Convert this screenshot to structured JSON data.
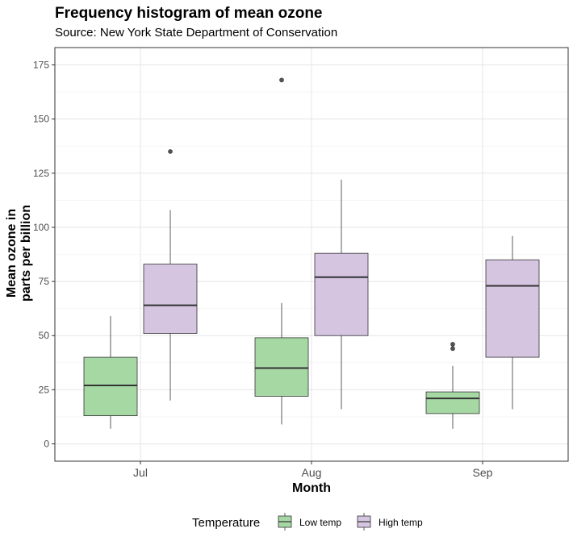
{
  "chart_data": {
    "type": "boxplot",
    "title": "Frequency histogram of mean ozone",
    "subtitle": "Source: New York State Department of Conservation",
    "xlabel": "Month",
    "ylabel_line1": "Mean ozone in",
    "ylabel_line2": "parts per billion",
    "ylim": [
      -8,
      183
    ],
    "yticks": [
      0,
      25,
      50,
      75,
      100,
      125,
      150,
      175
    ],
    "ytick_labels": [
      "0",
      "25",
      "50",
      "75",
      "100",
      "125",
      "150",
      "175"
    ],
    "grid": true,
    "legend_position": "bottom",
    "legend_title": "Temperature",
    "categories": [
      "Jul",
      "Aug",
      "Sep"
    ],
    "series": [
      {
        "name": "Low temp",
        "color": "#a6d8a4",
        "boxes": [
          {
            "whisker_low": 7,
            "q1": 13,
            "median": 27,
            "q3": 40,
            "whisker_high": 59,
            "outliers": []
          },
          {
            "whisker_low": 9,
            "q1": 22,
            "median": 35,
            "q3": 49,
            "whisker_high": 65,
            "outliers": [
              168
            ]
          },
          {
            "whisker_low": 7,
            "q1": 14,
            "median": 21,
            "q3": 24,
            "whisker_high": 36,
            "outliers": [
              44,
              46
            ]
          }
        ]
      },
      {
        "name": "High temp",
        "color": "#d5c5e1",
        "boxes": [
          {
            "whisker_low": 20,
            "q1": 51,
            "median": 64,
            "q3": 83,
            "whisker_high": 108,
            "outliers": [
              135
            ]
          },
          {
            "whisker_low": 16,
            "q1": 50,
            "median": 77,
            "q3": 88,
            "whisker_high": 122,
            "outliers": []
          },
          {
            "whisker_low": 16,
            "q1": 40,
            "median": 73,
            "q3": 85,
            "whisker_high": 96,
            "outliers": []
          }
        ]
      }
    ]
  }
}
